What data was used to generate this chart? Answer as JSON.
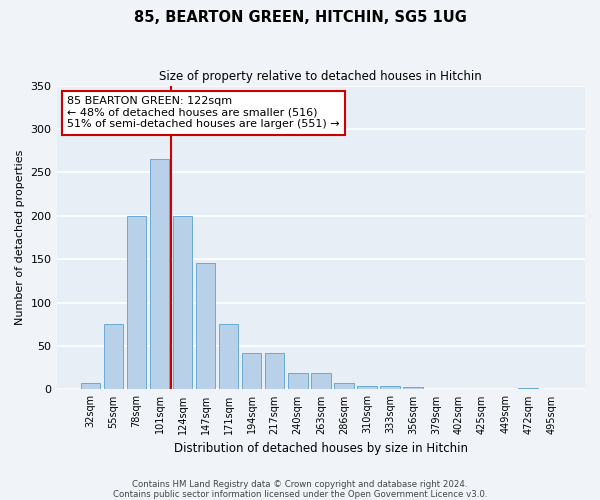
{
  "title": "85, BEARTON GREEN, HITCHIN, SG5 1UG",
  "subtitle": "Size of property relative to detached houses in Hitchin",
  "xlabel": "Distribution of detached houses by size in Hitchin",
  "ylabel": "Number of detached properties",
  "bins": [
    "32sqm",
    "55sqm",
    "78sqm",
    "101sqm",
    "124sqm",
    "147sqm",
    "171sqm",
    "194sqm",
    "217sqm",
    "240sqm",
    "263sqm",
    "286sqm",
    "310sqm",
    "333sqm",
    "356sqm",
    "379sqm",
    "402sqm",
    "425sqm",
    "449sqm",
    "472sqm",
    "495sqm"
  ],
  "heights": [
    7,
    75,
    200,
    265,
    200,
    146,
    75,
    42,
    42,
    19,
    19,
    7,
    4,
    4,
    3,
    0,
    0,
    0,
    0,
    2,
    0
  ],
  "bar_color": "#b8d0e8",
  "bar_edge_color": "#6aaad4",
  "marker_bin_index": 4,
  "marker_color": "#cc0000",
  "annotation_text": "85 BEARTON GREEN: 122sqm\n← 48% of detached houses are smaller (516)\n51% of semi-detached houses are larger (551) →",
  "annotation_box_color": "#ffffff",
  "annotation_box_edge": "#cc0000",
  "ylim": [
    0,
    350
  ],
  "yticks": [
    0,
    50,
    100,
    150,
    200,
    250,
    300,
    350
  ],
  "background_color": "#e8eef5",
  "grid_color": "#ffffff",
  "footer_line1": "Contains HM Land Registry data © Crown copyright and database right 2024.",
  "footer_line2": "Contains public sector information licensed under the Open Government Licence v3.0."
}
